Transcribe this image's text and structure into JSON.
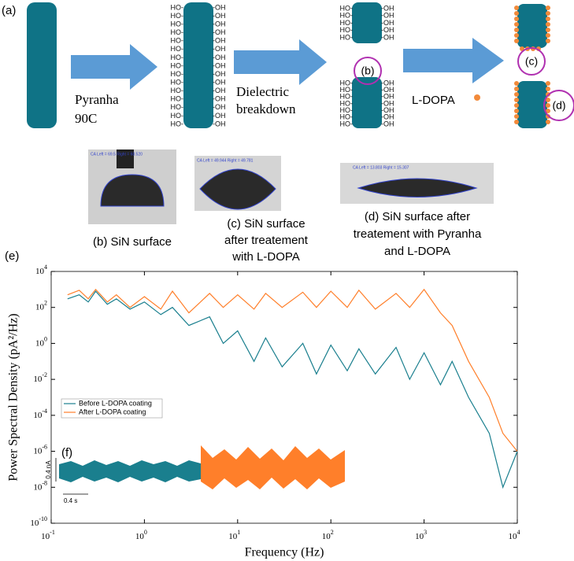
{
  "figure": {
    "panel_a": "(a)",
    "ho_label": "HO-",
    "oh_label": "-OH",
    "step1": [
      "Pyranha",
      "90C"
    ],
    "step2": [
      "Dielectric",
      "breakdown"
    ],
    "step3": "L-DOPA",
    "marker_b": "(b)",
    "marker_c": "(c)",
    "marker_d": "(d)",
    "photos": [
      {
        "overlay": "CA Left = 69.5 Right = 68.520",
        "caption": [
          "(b) SiN surface"
        ]
      },
      {
        "overlay": "CA Left = 49.944 Right = 49.781",
        "caption": [
          "(c) SiN surface",
          "after treatement",
          "with L-DOPA"
        ]
      },
      {
        "overlay": "CA Left = 13.803 Right = 15.307",
        "caption": [
          "(d) SiN surface after",
          "treatement with Pyranha",
          "and L-DOPA"
        ]
      }
    ],
    "panel_e": "(e)",
    "inset": {
      "label": "(f)",
      "current_scale": "0.4 nA",
      "time_scale": "0.4 s"
    }
  },
  "chart_data": {
    "type": "line",
    "xlabel": "Frequency (Hz)",
    "ylabel": "Power Spectral Density (pA²/Hz)",
    "xscale": "log",
    "yscale": "log",
    "xlim": [
      0.1,
      10000
    ],
    "ylim": [
      1e-10,
      10000
    ],
    "xticks": [
      {
        "value": 0.1,
        "label": "10",
        "exponent": "-1"
      },
      {
        "value": 1,
        "label": "10",
        "exponent": "0"
      },
      {
        "value": 10,
        "label": "10",
        "exponent": "1"
      },
      {
        "value": 100,
        "label": "10",
        "exponent": "2"
      },
      {
        "value": 1000,
        "label": "10",
        "exponent": "3"
      },
      {
        "value": 10000,
        "label": "10",
        "exponent": "4"
      }
    ],
    "yticks": [
      {
        "value": 1e-10,
        "label": "10",
        "exponent": "-10"
      },
      {
        "value": 1e-08,
        "label": "10",
        "exponent": "-8"
      },
      {
        "value": 1e-06,
        "label": "10",
        "exponent": "-6"
      },
      {
        "value": 0.0001,
        "label": "10",
        "exponent": "-4"
      },
      {
        "value": 0.01,
        "label": "10",
        "exponent": "-2"
      },
      {
        "value": 1,
        "label": "10",
        "exponent": "0"
      },
      {
        "value": 100,
        "label": "10",
        "exponent": "2"
      },
      {
        "value": 10000,
        "label": "10",
        "exponent": "4"
      }
    ],
    "legend": "left",
    "x": [
      0.15,
      0.2,
      0.25,
      0.3,
      0.4,
      0.5,
      0.7,
      1,
      1.5,
      2,
      3,
      5,
      7,
      10,
      15,
      20,
      30,
      50,
      70,
      100,
      150,
      200,
      300,
      500,
      700,
      1000,
      1500,
      2000,
      3000,
      5000,
      7000,
      10000
    ],
    "series": [
      {
        "name": "Before L-DOPA coating",
        "color": "#1a7f8e",
        "values": [
          300,
          500,
          200,
          800,
          150,
          300,
          80,
          200,
          40,
          100,
          10,
          30,
          1,
          5,
          0.1,
          2,
          0.05,
          1,
          0.02,
          0.8,
          0.03,
          0.5,
          0.02,
          0.6,
          0.01,
          0.3,
          0.005,
          0.1,
          0.001,
          1e-05,
          1e-08,
          1e-06
        ]
      },
      {
        "name": "After L-DOPA coating",
        "color": "#ff7f2a",
        "values": [
          500,
          900,
          300,
          1000,
          200,
          500,
          100,
          400,
          80,
          800,
          50,
          600,
          100,
          500,
          80,
          600,
          100,
          700,
          100,
          800,
          100,
          900,
          80,
          600,
          100,
          1000,
          50,
          10,
          0.1,
          0.001,
          1e-05,
          1e-06
        ]
      }
    ]
  }
}
